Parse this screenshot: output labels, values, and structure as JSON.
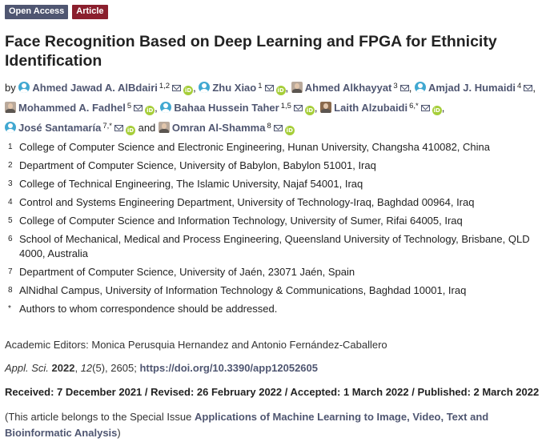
{
  "badges": {
    "open_access": "Open Access",
    "article": "Article"
  },
  "title": "Face Recognition Based on Deep Learning and FPGA for Ethnicity Identification",
  "by_label": "by",
  "and_label": "and",
  "authors": [
    {
      "name": "Ahmed Jawad A. AlBdairi",
      "sup": "1,2",
      "avatar": "generic",
      "email": true,
      "orcid": true,
      "sep": ","
    },
    {
      "name": "Zhu Xiao",
      "sup": "1",
      "avatar": "generic",
      "email": true,
      "orcid": true,
      "sep": ","
    },
    {
      "name": "Ahmed Alkhayyat",
      "sup": "3",
      "avatar": "photo",
      "email": true,
      "orcid": false,
      "sep": ","
    },
    {
      "name": "Amjad J. Humaidi",
      "sup": "4",
      "avatar": "generic",
      "email": true,
      "orcid": false,
      "sep": ","
    },
    {
      "name": "Mohammed A. Fadhel",
      "sup": "5",
      "avatar": "photo",
      "email": true,
      "orcid": true,
      "sep": ","
    },
    {
      "name": "Bahaa Hussein Taher",
      "sup": "1,5",
      "avatar": "generic",
      "email": true,
      "orcid": true,
      "sep": ","
    },
    {
      "name": "Laith Alzubaidi",
      "sup": "6,*",
      "avatar": "photo-dark",
      "email": true,
      "orcid": true,
      "sep": ","
    },
    {
      "name": "José Santamaría",
      "sup": "7,*",
      "avatar": "generic",
      "email": true,
      "orcid": true,
      "sep": ""
    },
    {
      "name": "Omran Al-Shamma",
      "sup": "8",
      "avatar": "photo",
      "email": true,
      "orcid": true,
      "sep": ""
    }
  ],
  "affiliations": [
    {
      "num": "1",
      "text": "College of Computer Science and Electronic Engineering, Hunan University, Changsha 410082, China"
    },
    {
      "num": "2",
      "text": "Department of Computer Science, University of Babylon, Babylon 51001, Iraq"
    },
    {
      "num": "3",
      "text": "College of Technical Engineering, The Islamic University, Najaf 54001, Iraq"
    },
    {
      "num": "4",
      "text": "Control and Systems Engineering Department, University of Technology-Iraq, Baghdad 00964, Iraq"
    },
    {
      "num": "5",
      "text": "College of Computer Science and Information Technology, University of Sumer, Rifai 64005, Iraq"
    },
    {
      "num": "6",
      "text": "School of Mechanical, Medical and Process Engineering, Queensland University of Technology, Brisbane, QLD 4000, Australia"
    },
    {
      "num": "7",
      "text": "Department of Computer Science, University of Jaén, 23071 Jaén, Spain"
    },
    {
      "num": "8",
      "text": "AlNidhal Campus, University of Information Technology & Communications, Baghdad 10001, Iraq"
    },
    {
      "num": "*",
      "text": "Authors to whom correspondence should be addressed."
    }
  ],
  "editors": "Academic Editors: Monica Perusquia Hernandez and Antonio Fernández-Caballero",
  "citation": {
    "journal": "Appl. Sci.",
    "year": "2022",
    "volume": "12",
    "rest": "(5), 2605;",
    "doi": "https://doi.org/10.3390/app12052605"
  },
  "dates": "Received: 7 December 2021 / Revised: 26 February 2022 / Accepted: 1 March 2022 / Published: 2 March 2022",
  "special_issue": {
    "prefix": "(This article belongs to the Special Issue ",
    "link": "Applications of Machine Learning to Image, Video, Text and Bioinformatic Analysis",
    "suffix": ")"
  },
  "icons": {
    "email": "envelope-icon",
    "orcid": "orcid-icon",
    "avatar": "author-avatar-icon"
  },
  "colors": {
    "link": "#4f5671",
    "open_access_badge": "#4f5671",
    "article_badge": "#8b1f2d",
    "orcid": "#a6ce39",
    "avatar": "#41a8d1"
  }
}
